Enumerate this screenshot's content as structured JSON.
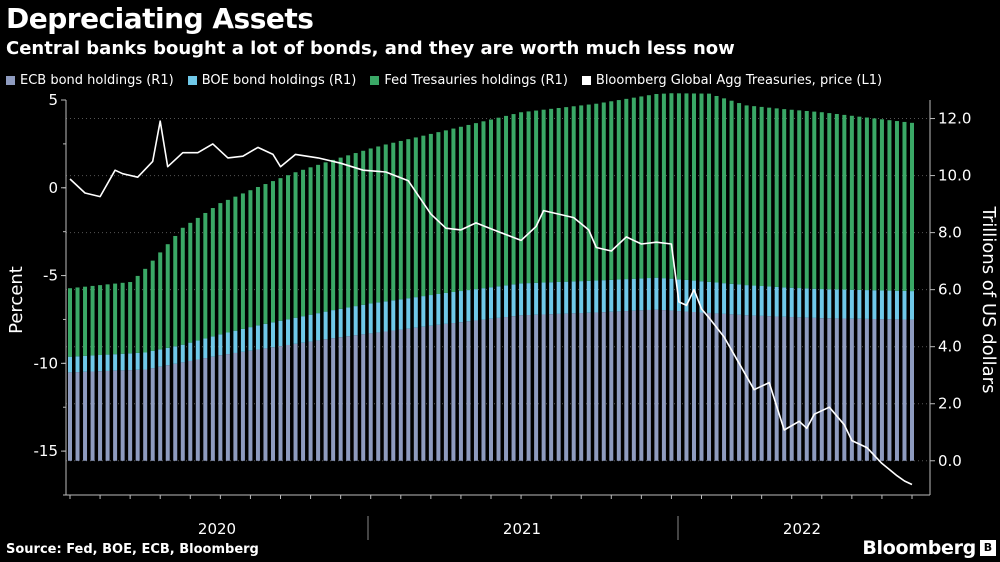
{
  "title": "Depreciating Assets",
  "subtitle": "Central banks bought a lot of bonds, and they are worth much less now",
  "legend": [
    {
      "label": "ECB bond holdings (R1)",
      "color": "#8e9bbf"
    },
    {
      "label": "BOE bond holdings (R1)",
      "color": "#6fc8e8"
    },
    {
      "label": "Fed Tresauries holdings (R1)",
      "color": "#3aa866"
    },
    {
      "label": "Bloomberg Global Agg Treasuries, price  (L1)",
      "color": "#ffffff"
    }
  ],
  "source": "Source: Fed, BOE, ECB, Bloomberg",
  "brand": "Bloomberg",
  "chart_data": {
    "type": "bar",
    "stacked": true,
    "left_axis": {
      "label": "Percent",
      "range": [
        -17.5,
        5
      ],
      "ticks": [
        "5",
        "0",
        "-5",
        "-10",
        "-15"
      ]
    },
    "right_axis": {
      "label": "Trillions of US dollars",
      "range": [
        -1.2,
        12.65
      ],
      "ticks": [
        "12.0",
        "10.0",
        "8.0",
        "6.0",
        "4.0",
        "2.0",
        "0.0"
      ]
    },
    "x_ticks": [
      "2020",
      "2021",
      "2022"
    ],
    "series": [
      {
        "name": "ECB bond holdings (R1)",
        "color": "#8e9bbf",
        "anchors": [
          [
            0,
            3.1
          ],
          [
            10,
            3.2
          ],
          [
            20,
            3.7
          ],
          [
            35,
            4.3
          ],
          [
            50,
            4.8
          ],
          [
            60,
            5.1
          ],
          [
            70,
            5.2
          ],
          [
            78,
            5.3
          ],
          [
            90,
            5.1
          ],
          [
            100,
            5.0
          ],
          [
            112,
            4.95
          ]
        ]
      },
      {
        "name": "BOE bond holdings (R1)",
        "color": "#6fc8e8",
        "anchors": [
          [
            0,
            0.55
          ],
          [
            15,
            0.62
          ],
          [
            25,
            0.85
          ],
          [
            40,
            1.05
          ],
          [
            60,
            1.12
          ],
          [
            80,
            1.12
          ],
          [
            95,
            1.03
          ],
          [
            112,
            1.0
          ]
        ]
      },
      {
        "name": "Fed Tresauries holdings (R1)",
        "color": "#3aa866",
        "anchors": [
          [
            0,
            2.4
          ],
          [
            8,
            2.5
          ],
          [
            9,
            2.7
          ],
          [
            12,
            3.4
          ],
          [
            15,
            4.1
          ],
          [
            20,
            4.6
          ],
          [
            30,
            5.1
          ],
          [
            42,
            5.5
          ],
          [
            50,
            5.7
          ],
          [
            60,
            6.0
          ],
          [
            70,
            6.2
          ],
          [
            80,
            6.5
          ],
          [
            85,
            6.6
          ],
          [
            90,
            6.3
          ],
          [
            100,
            6.2
          ],
          [
            112,
            5.9
          ]
        ]
      }
    ],
    "line": {
      "name": "Bloomberg Global Agg Treasuries, price  (L1)",
      "color": "#ffffff",
      "x": [
        0,
        2,
        4,
        6,
        7,
        9,
        11,
        12,
        13,
        15,
        17,
        19,
        21,
        23,
        25,
        27,
        28,
        30,
        33,
        36,
        39,
        42,
        45,
        48,
        50,
        52,
        54,
        57,
        60,
        62,
        63,
        65,
        67,
        69,
        70,
        72,
        74,
        76,
        78,
        80,
        81,
        82,
        83,
        84,
        85,
        87,
        89,
        91,
        93,
        95,
        97,
        98,
        99,
        101,
        103,
        104,
        106,
        108,
        110,
        111,
        112
      ],
      "y": [
        0.5,
        -0.3,
        -0.5,
        1.0,
        0.8,
        0.6,
        1.5,
        3.8,
        1.2,
        2.0,
        2.0,
        2.5,
        1.7,
        1.8,
        2.3,
        1.9,
        1.2,
        1.9,
        1.7,
        1.4,
        1.0,
        0.9,
        0.4,
        -1.5,
        -2.3,
        -2.4,
        -2.0,
        -2.5,
        -3.0,
        -2.2,
        -1.3,
        -1.5,
        -1.7,
        -2.4,
        -3.4,
        -3.6,
        -2.8,
        -3.2,
        -3.1,
        -3.2,
        -6.5,
        -6.7,
        -5.8,
        -6.9,
        -7.4,
        -8.5,
        -10.0,
        -11.5,
        -11.1,
        -13.8,
        -13.3,
        -13.7,
        -12.9,
        -12.5,
        -13.5,
        -14.4,
        -14.8,
        -15.7,
        -16.4,
        -16.7,
        -16.9
      ]
    }
  }
}
